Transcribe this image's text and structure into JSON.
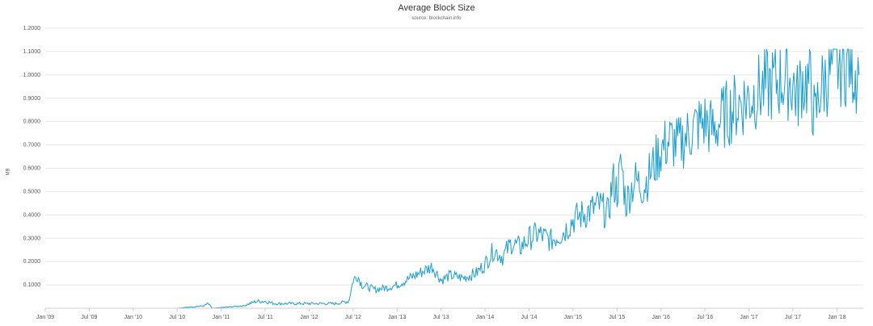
{
  "chart_data": {
    "type": "line",
    "title": "Average Block Size",
    "subtitle": "source: blockchain.info",
    "ylabel": "MB",
    "xlabel": "",
    "ylim": [
      0,
      1.2
    ],
    "yticks": [
      "0.1000",
      "0.2000",
      "0.3000",
      "0.4000",
      "0.5000",
      "0.6000",
      "0.7000",
      "0.8000",
      "0.9000",
      "1.0000",
      "1.1000",
      "1.2000"
    ],
    "xlim": [
      2009.0,
      2018.3
    ],
    "xticks": [
      "Jan '09",
      "Jul '09",
      "Jan '10",
      "Jul '10",
      "Jan '11",
      "Jul '11",
      "Jan '12",
      "Jul '12",
      "Jan '13",
      "Jul '13",
      "Jan '14",
      "Jul '14",
      "Jan '15",
      "Jul '15",
      "Jan '16",
      "Jul '16",
      "Jan '17",
      "Jul '17",
      "Jan '18"
    ],
    "grid": true,
    "legend": "none",
    "color": "#1a9ecf",
    "series": [
      {
        "x": [
          2009.0,
          2009.5,
          2010.0,
          2010.5,
          2010.8,
          2010.85,
          2010.9,
          2011.0,
          2011.25,
          2011.4,
          2011.5,
          2011.6,
          2011.75,
          2012.0,
          2012.3,
          2012.45,
          2012.5,
          2012.55,
          2012.6,
          2012.75,
          2012.9,
          2013.0,
          2013.15,
          2013.3,
          2013.4,
          2013.5,
          2013.6,
          2013.75,
          2013.9,
          2014.0,
          2014.1,
          2014.2,
          2014.3,
          2014.4,
          2014.5,
          2014.6,
          2014.75,
          2014.9,
          2015.0,
          2015.1,
          2015.2,
          2015.3,
          2015.4,
          2015.45,
          2015.5,
          2015.55,
          2015.6,
          2015.7,
          2015.8,
          2015.9,
          2016.0,
          2016.1,
          2016.2,
          2016.3,
          2016.4,
          2016.5,
          2016.6,
          2016.7,
          2016.8,
          2016.9,
          2017.0,
          2017.1,
          2017.2,
          2017.3,
          2017.4,
          2017.5,
          2017.55,
          2017.6,
          2017.7,
          2017.75,
          2017.8,
          2017.9,
          2018.0,
          2018.1,
          2018.15,
          2018.2,
          2018.25
        ],
        "values": [
          0.0,
          0.0,
          0.0,
          0.0,
          0.01,
          0.02,
          0.0,
          0.003,
          0.01,
          0.03,
          0.03,
          0.02,
          0.02,
          0.02,
          0.02,
          0.03,
          0.12,
          0.14,
          0.1,
          0.08,
          0.09,
          0.1,
          0.13,
          0.16,
          0.18,
          0.12,
          0.14,
          0.13,
          0.15,
          0.19,
          0.25,
          0.22,
          0.28,
          0.26,
          0.3,
          0.32,
          0.29,
          0.33,
          0.38,
          0.4,
          0.42,
          0.44,
          0.4,
          0.55,
          0.5,
          0.62,
          0.45,
          0.55,
          0.52,
          0.6,
          0.68,
          0.72,
          0.7,
          0.74,
          0.78,
          0.8,
          0.76,
          0.82,
          0.85,
          0.88,
          0.9,
          0.93,
          0.95,
          0.97,
          0.98,
          0.97,
          0.9,
          0.98,
          0.96,
          0.8,
          0.93,
          1.0,
          1.04,
          1.05,
          1.07,
          1.02,
          1.0
        ]
      }
    ]
  }
}
